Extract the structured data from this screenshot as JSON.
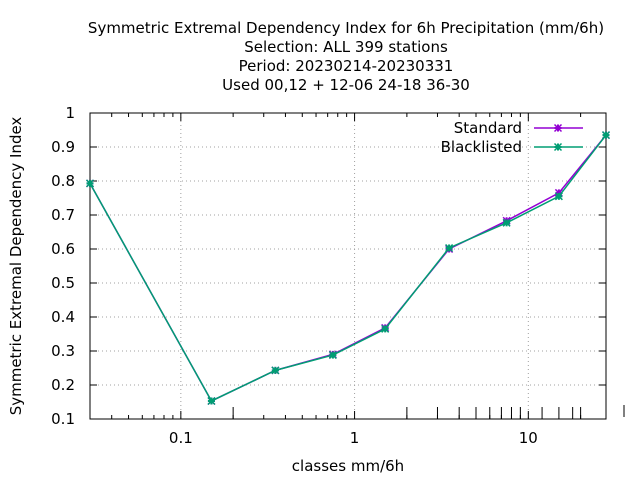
{
  "chart_data": {
    "type": "line",
    "title_lines": [
      "Symmetric Extremal Dependency Index  for 6h Precipitation (mm/6h)",
      "Selection: ALL    399 stations",
      "Period: 20230214-20230331",
      "Used  00,12  + 12-06 24-18 36-30"
    ],
    "xlabel": "classes mm/6h",
    "ylabel": "Symmetric Extremal Dependency Index",
    "x_scale": "log",
    "xlim": [
      0.03,
      28
    ],
    "ylim": [
      0.1,
      1.0
    ],
    "x_tick_labels": [
      "0.1",
      "1",
      "10"
    ],
    "y_tick_labels": [
      "0.1",
      "0.2",
      "0.3",
      "0.4",
      "0.5",
      "0.6",
      "0.7",
      "0.8",
      "0.9",
      "1"
    ],
    "grid": true,
    "legend_position": "top-right",
    "series": [
      {
        "name": "Standard",
        "color": "#9400d3",
        "x": [
          0.03,
          0.15,
          0.35,
          0.75,
          1.5,
          3.5,
          7.5,
          15,
          28
        ],
        "y": [
          0.793,
          0.153,
          0.243,
          0.29,
          0.368,
          0.6,
          0.683,
          0.765,
          0.935
        ]
      },
      {
        "name": "Blacklisted",
        "color": "#009e73",
        "x": [
          0.03,
          0.15,
          0.35,
          0.75,
          1.5,
          3.5,
          7.5,
          15,
          28
        ],
        "y": [
          0.793,
          0.153,
          0.243,
          0.288,
          0.365,
          0.603,
          0.677,
          0.755,
          0.935
        ]
      }
    ]
  }
}
